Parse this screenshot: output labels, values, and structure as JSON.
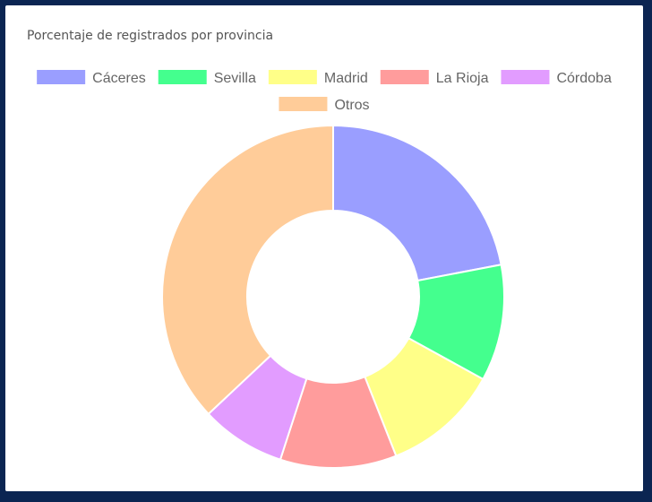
{
  "chart_data": {
    "type": "pie",
    "variant": "doughnut",
    "title": "Porcentaje de registrados por provincia",
    "legend_position": "top",
    "series": [
      {
        "name": "Cáceres",
        "value": 22,
        "color": "#9a9eff"
      },
      {
        "name": "Sevilla",
        "value": 11,
        "color": "#44ff8e"
      },
      {
        "name": "Madrid",
        "value": 11,
        "color": "#ffff88"
      },
      {
        "name": "La Rioja",
        "value": 11,
        "color": "#ff9c9c"
      },
      {
        "name": "Córdoba",
        "value": 8,
        "color": "#e29cff"
      },
      {
        "name": "Otros",
        "value": 37,
        "color": "#ffcc99"
      }
    ]
  }
}
